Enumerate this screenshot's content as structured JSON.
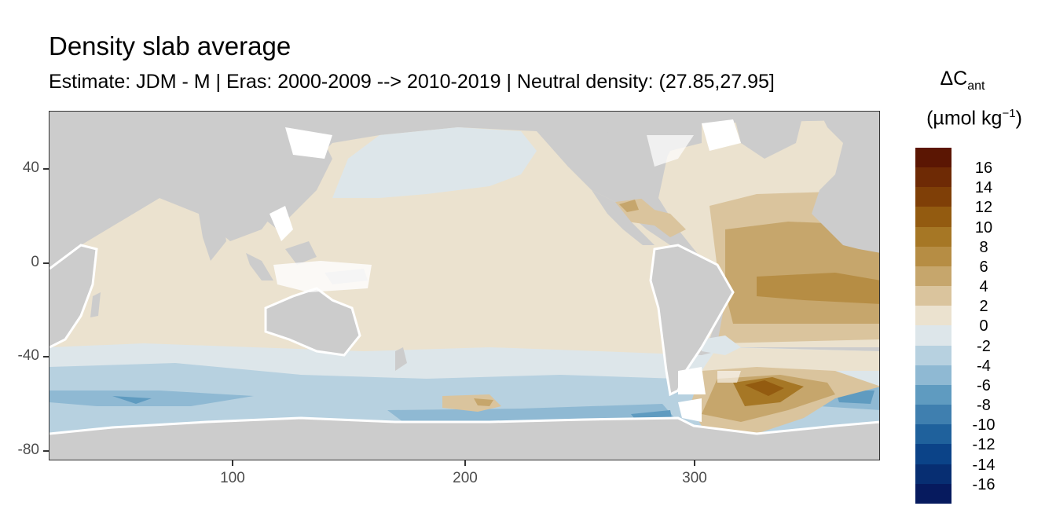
{
  "title": "Density slab average",
  "subtitle": "Estimate: JDM - M | Eras: 2000-2009 --> 2010-2019 | Neutral density: (27.85,27.95]",
  "legend": {
    "title_line1": "ΔC",
    "title_sub": "ant",
    "title_line2": "(µmol kg",
    "title_sup": "−1",
    "title_close": ")",
    "labels": [
      "16",
      "14",
      "12",
      "10",
      "8",
      "6",
      "4",
      "2",
      "0",
      "-2",
      "-4",
      "-6",
      "-8",
      "-10",
      "-12",
      "-14",
      "-16"
    ],
    "colors": [
      "#5b1603",
      "#6e2a05",
      "#7f3f07",
      "#935b10",
      "#a67725",
      "#b68d44",
      "#c6a66c",
      "#dac49d",
      "#ebe2cf",
      "#dde6ea",
      "#b7d1e0",
      "#8fb9d3",
      "#5f9bc0",
      "#3f7faf",
      "#1f619c",
      "#0b4388",
      "#072e72",
      "#061a5e"
    ]
  },
  "axes": {
    "x_ticks": [
      "100",
      "200",
      "300"
    ],
    "y_ticks": [
      "40",
      "0",
      "-40",
      "-80"
    ]
  },
  "map_colors": {
    "land": "#cccccc",
    "white": "#ffffff",
    "pale_blue": "#dde6ea",
    "light_blue": "#b7d1e0",
    "mid_blue": "#8fb9d3",
    "blue": "#5f9bc0",
    "dark_blue": "#3f7faf",
    "neutral": "#ebe2cf",
    "tan2": "#dac49d",
    "tan4": "#c6a66c",
    "tan6": "#b68d44",
    "tan8": "#a67725",
    "tan10": "#935b10"
  }
}
